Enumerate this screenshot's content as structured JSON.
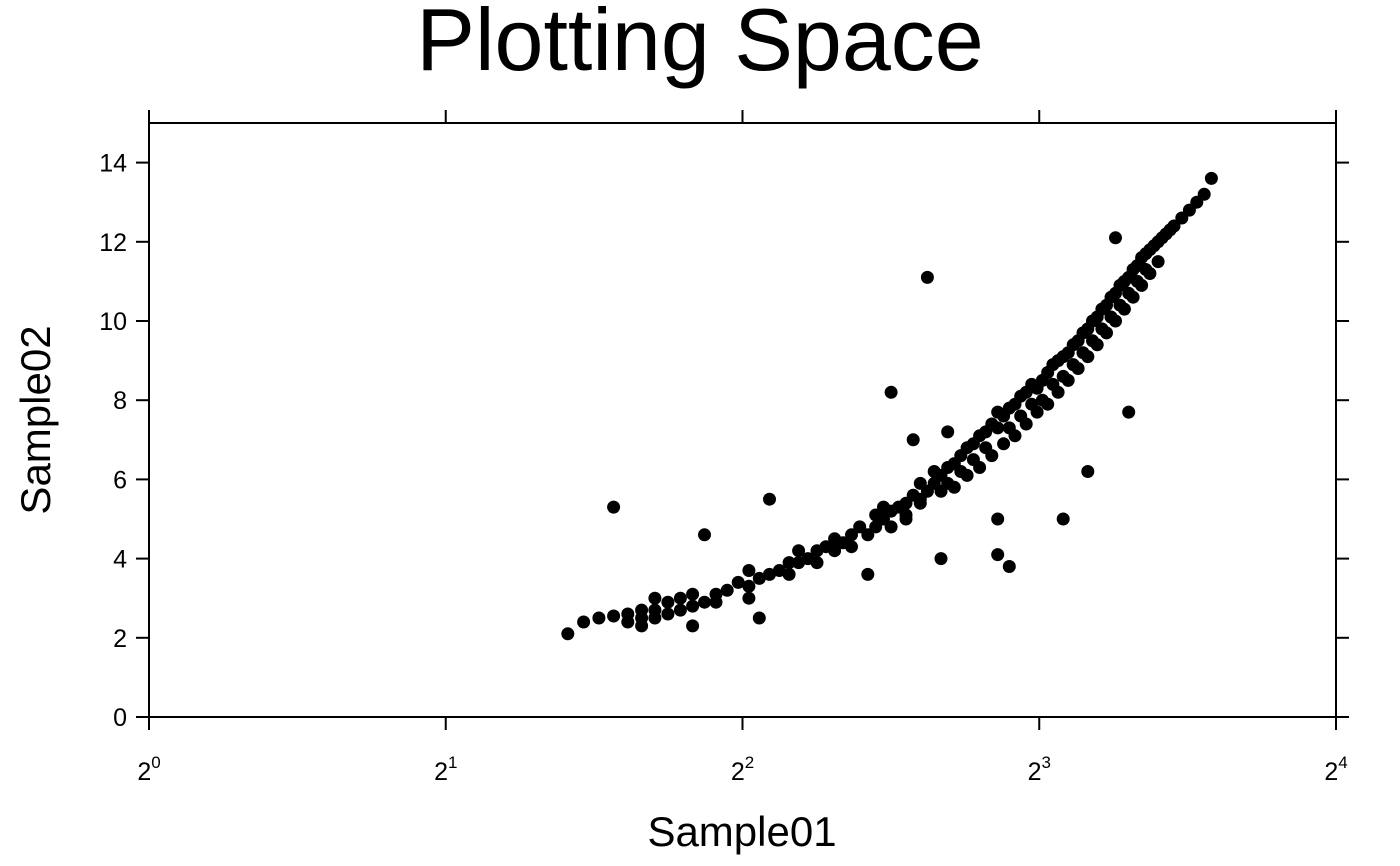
{
  "chart_data": {
    "type": "scatter",
    "title": "Plotting Space",
    "xlabel": "Sample01",
    "ylabel": "Sample02",
    "x_scale": "log2",
    "xlim": [
      1,
      16
    ],
    "ylim": [
      0,
      15
    ],
    "x_ticks": [
      {
        "base": "2",
        "exp": "0",
        "value": 1
      },
      {
        "base": "2",
        "exp": "1",
        "value": 2
      },
      {
        "base": "2",
        "exp": "2",
        "value": 4
      },
      {
        "base": "2",
        "exp": "3",
        "value": 8
      },
      {
        "base": "2",
        "exp": "4",
        "value": 16
      }
    ],
    "y_ticks": [
      "0",
      "2",
      "4",
      "6",
      "8",
      "10",
      "12",
      "14"
    ],
    "grid": false,
    "marker_color": "#000000",
    "points": [
      [
        2.66,
        2.1
      ],
      [
        2.76,
        2.4
      ],
      [
        2.86,
        2.5
      ],
      [
        2.96,
        2.55
      ],
      [
        3.06,
        2.6
      ],
      [
        3.06,
        2.4
      ],
      [
        3.16,
        2.5
      ],
      [
        3.16,
        2.3
      ],
      [
        3.16,
        2.7
      ],
      [
        3.26,
        2.5
      ],
      [
        3.26,
        2.7
      ],
      [
        3.26,
        3.0
      ],
      [
        3.36,
        2.6
      ],
      [
        3.36,
        2.9
      ],
      [
        3.46,
        2.7
      ],
      [
        3.46,
        3.0
      ],
      [
        3.56,
        2.8
      ],
      [
        3.56,
        3.1
      ],
      [
        3.56,
        2.3
      ],
      [
        3.66,
        2.9
      ],
      [
        3.76,
        3.1
      ],
      [
        3.76,
        2.9
      ],
      [
        3.86,
        3.2
      ],
      [
        3.96,
        3.4
      ],
      [
        4.06,
        3.3
      ],
      [
        4.06,
        3.7
      ],
      [
        4.06,
        3.0
      ],
      [
        4.16,
        3.5
      ],
      [
        4.26,
        3.6
      ],
      [
        4.36,
        3.7
      ],
      [
        4.46,
        3.9
      ],
      [
        4.46,
        3.6
      ],
      [
        4.56,
        3.9
      ],
      [
        4.56,
        4.2
      ],
      [
        4.66,
        4.0
      ],
      [
        4.76,
        4.2
      ],
      [
        4.76,
        3.9
      ],
      [
        4.86,
        4.3
      ],
      [
        4.96,
        4.2
      ],
      [
        4.96,
        4.5
      ],
      [
        5.06,
        4.4
      ],
      [
        5.16,
        4.6
      ],
      [
        5.16,
        4.3
      ],
      [
        5.26,
        4.8
      ],
      [
        5.36,
        4.6
      ],
      [
        5.46,
        4.8
      ],
      [
        5.46,
        5.1
      ],
      [
        5.56,
        5.0
      ],
      [
        5.66,
        5.2
      ],
      [
        5.66,
        4.8
      ],
      [
        5.76,
        5.3
      ],
      [
        5.86,
        5.4
      ],
      [
        5.86,
        5.1
      ],
      [
        5.96,
        5.6
      ],
      [
        6.06,
        5.5
      ],
      [
        6.06,
        5.9
      ],
      [
        6.16,
        5.7
      ],
      [
        6.26,
        5.9
      ],
      [
        6.26,
        6.2
      ],
      [
        6.36,
        6.1
      ],
      [
        6.46,
        6.3
      ],
      [
        6.46,
        5.9
      ],
      [
        6.56,
        6.4
      ],
      [
        6.66,
        6.6
      ],
      [
        6.66,
        6.2
      ],
      [
        6.76,
        6.8
      ],
      [
        6.86,
        6.9
      ],
      [
        6.86,
        6.5
      ],
      [
        6.96,
        7.1
      ],
      [
        7.06,
        7.2
      ],
      [
        7.06,
        6.8
      ],
      [
        7.16,
        7.4
      ],
      [
        7.26,
        7.3
      ],
      [
        7.26,
        7.7
      ],
      [
        7.36,
        7.6
      ],
      [
        7.46,
        7.8
      ],
      [
        7.46,
        7.3
      ],
      [
        7.56,
        7.9
      ],
      [
        7.66,
        8.1
      ],
      [
        7.66,
        7.6
      ],
      [
        7.76,
        8.2
      ],
      [
        7.86,
        8.4
      ],
      [
        7.86,
        7.9
      ],
      [
        7.96,
        8.3
      ],
      [
        8.06,
        8.5
      ],
      [
        8.06,
        8.0
      ],
      [
        8.16,
        8.7
      ],
      [
        8.26,
        8.9
      ],
      [
        8.26,
        8.4
      ],
      [
        8.36,
        9.0
      ],
      [
        8.46,
        9.1
      ],
      [
        8.46,
        8.6
      ],
      [
        8.56,
        9.2
      ],
      [
        8.66,
        9.4
      ],
      [
        8.66,
        8.9
      ],
      [
        8.76,
        9.5
      ],
      [
        8.86,
        9.7
      ],
      [
        8.86,
        9.2
      ],
      [
        8.96,
        9.8
      ],
      [
        9.06,
        10.0
      ],
      [
        9.06,
        9.5
      ],
      [
        9.16,
        10.1
      ],
      [
        9.26,
        10.3
      ],
      [
        9.26,
        9.8
      ],
      [
        9.36,
        10.4
      ],
      [
        9.46,
        10.6
      ],
      [
        9.46,
        10.1
      ],
      [
        9.56,
        10.7
      ],
      [
        9.66,
        10.9
      ],
      [
        9.66,
        10.4
      ],
      [
        9.76,
        11.0
      ],
      [
        9.86,
        11.1
      ],
      [
        9.86,
        10.7
      ],
      [
        9.96,
        11.3
      ],
      [
        10.06,
        11.4
      ],
      [
        10.06,
        11.0
      ],
      [
        10.16,
        11.6
      ],
      [
        10.26,
        11.7
      ],
      [
        10.26,
        11.3
      ],
      [
        10.36,
        11.8
      ],
      [
        10.46,
        11.9
      ],
      [
        10.56,
        12.0
      ],
      [
        10.66,
        12.1
      ],
      [
        10.76,
        12.2
      ],
      [
        10.86,
        12.3
      ],
      [
        10.96,
        12.4
      ],
      [
        11.16,
        12.6
      ],
      [
        11.36,
        12.8
      ],
      [
        11.56,
        13.0
      ],
      [
        11.76,
        13.2
      ],
      [
        11.96,
        13.6
      ],
      [
        5.56,
        5.3
      ],
      [
        5.86,
        5.0
      ],
      [
        6.06,
        5.4
      ],
      [
        6.36,
        5.7
      ],
      [
        6.56,
        5.8
      ],
      [
        6.76,
        6.1
      ],
      [
        6.96,
        6.3
      ],
      [
        7.16,
        6.6
      ],
      [
        7.36,
        6.9
      ],
      [
        7.56,
        7.1
      ],
      [
        7.76,
        7.4
      ],
      [
        7.96,
        7.7
      ],
      [
        8.16,
        7.9
      ],
      [
        8.36,
        8.2
      ],
      [
        8.56,
        8.5
      ],
      [
        8.76,
        8.8
      ],
      [
        8.96,
        9.1
      ],
      [
        9.16,
        9.4
      ],
      [
        9.36,
        9.7
      ],
      [
        9.56,
        10.0
      ],
      [
        9.76,
        10.3
      ],
      [
        9.96,
        10.6
      ],
      [
        10.16,
        10.9
      ],
      [
        10.36,
        11.2
      ],
      [
        10.56,
        11.5
      ],
      [
        2.96,
        5.3
      ],
      [
        3.66,
        4.6
      ],
      [
        4.26,
        5.5
      ],
      [
        4.16,
        2.5
      ],
      [
        5.36,
        3.6
      ],
      [
        5.66,
        8.2
      ],
      [
        6.16,
        11.1
      ],
      [
        6.36,
        4.0
      ],
      [
        7.26,
        4.1
      ],
      [
        7.46,
        3.8
      ],
      [
        8.46,
        5.0
      ],
      [
        8.96,
        6.2
      ],
      [
        9.86,
        7.7
      ],
      [
        9.56,
        12.1
      ],
      [
        7.26,
        5.0
      ],
      [
        5.96,
        7.0
      ],
      [
        6.46,
        7.2
      ]
    ]
  }
}
